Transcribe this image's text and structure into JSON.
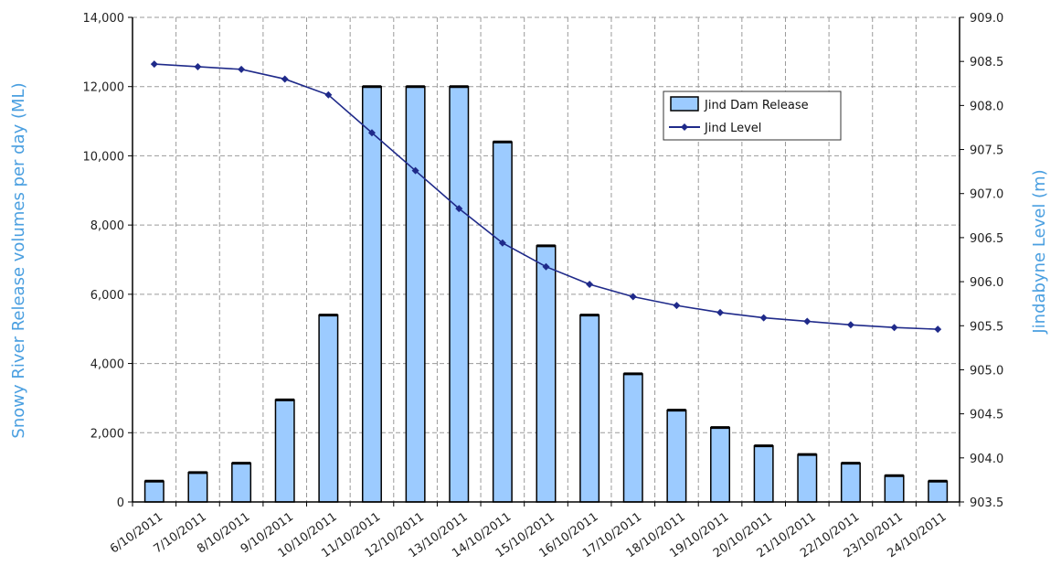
{
  "colors": {
    "bar_fill": "#9ccbff",
    "bar_stroke": "#000000",
    "line": "#1f2a8a",
    "axis_title": "#4a9fe0",
    "grid": "#9a9a9a"
  },
  "chart_data": {
    "type": "bar",
    "categories": [
      "6/10/2011",
      "7/10/2011",
      "8/10/2011",
      "9/10/2011",
      "10/10/2011",
      "11/10/2011",
      "12/10/2011",
      "13/10/2011",
      "14/10/2011",
      "15/10/2011",
      "16/10/2011",
      "17/10/2011",
      "18/10/2011",
      "19/10/2011",
      "20/10/2011",
      "21/10/2011",
      "22/10/2011",
      "23/10/2011",
      "24/10/2011"
    ],
    "series": [
      {
        "name": "Jind Dam Release",
        "type": "bar",
        "axis": "left",
        "values": [
          600,
          850,
          1120,
          2950,
          5400,
          12000,
          12000,
          12000,
          10400,
          7400,
          5400,
          3700,
          2650,
          2150,
          1620,
          1370,
          1120,
          760,
          600
        ]
      },
      {
        "name": "Jind Level",
        "type": "line",
        "axis": "right",
        "values": [
          908.47,
          908.44,
          908.41,
          908.3,
          908.12,
          907.69,
          907.26,
          906.83,
          906.44,
          906.17,
          905.97,
          905.83,
          905.73,
          905.65,
          905.59,
          905.55,
          905.51,
          905.48,
          905.46
        ]
      }
    ],
    "title": "",
    "xlabel": "",
    "ylabel": "Snowy River Release volumes per day (ML)",
    "y2label": "Jindabyne Level (m)",
    "ylim": [
      0,
      14000
    ],
    "y2lim": [
      903.5,
      909.0
    ],
    "yticks": [
      "0",
      "2,000",
      "4,000",
      "6,000",
      "8,000",
      "10,000",
      "12,000",
      "14,000"
    ],
    "y2ticks": [
      "903.5",
      "904.0",
      "904.5",
      "905.0",
      "905.5",
      "906.0",
      "906.5",
      "907.0",
      "907.5",
      "908.0",
      "908.5",
      "909.0"
    ],
    "grid": true,
    "legend_position": "top-right"
  }
}
